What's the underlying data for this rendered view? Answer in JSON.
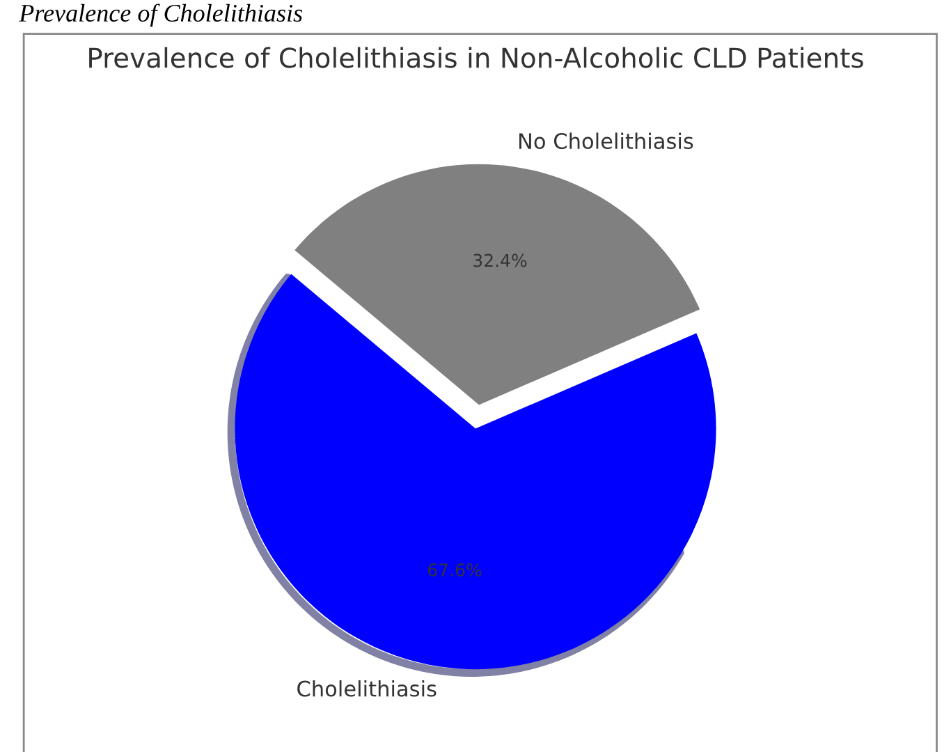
{
  "chart_data": {
    "type": "pie",
    "title": "Prevalence of Cholelithiasis in Non-Alcoholic CLD Patients",
    "annotations": [
      "Prevalence of Cholelithiasis"
    ],
    "categories": [
      "Cholelithiasis",
      "No Cholelithiasis"
    ],
    "values": [
      67.6,
      32.4
    ],
    "colors": [
      "#0000ff",
      "#808080"
    ],
    "value_labels": [
      "67.6%",
      "32.4%"
    ],
    "legend": false
  }
}
